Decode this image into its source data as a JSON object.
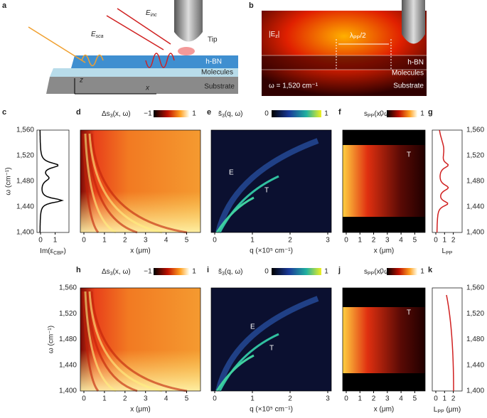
{
  "figure": {
    "a": {
      "label": "a",
      "e_inc": {
        "main": "E",
        "sub": "inc"
      },
      "e_sca": {
        "main": "E",
        "sub": "sca"
      },
      "tip": "Tip",
      "hbn": "h-BN",
      "molecules": "Molecules",
      "substrate": "Substrate",
      "z": "z",
      "x": "x"
    },
    "b": {
      "label": "b",
      "ez": {
        "main": "|E",
        "sub": "z",
        "tail": "|"
      },
      "lambda": {
        "main": "λ",
        "sub": "PP",
        "tail": "/2"
      },
      "hbn": "h-BN",
      "molecules": "Molecules",
      "substrate": "Substrate",
      "omega": "ω = 1,520 cm⁻¹"
    },
    "y_axis": {
      "label": "ω (cm⁻¹)",
      "ticks": [
        "1,560",
        "1,520",
        "1,480",
        "1,440",
        "1,400"
      ]
    },
    "c": {
      "label": "c",
      "xlabel": {
        "main": "Im(ε",
        "sub": "CBP",
        "tail": ")"
      },
      "xticks": [
        "0",
        "1"
      ]
    },
    "d": {
      "label": "d",
      "cbar_title": {
        "main": "Δs",
        "sub": "3",
        "tail": "(x, ω)"
      },
      "cbar_min": "−1",
      "cbar_max": "1",
      "xlabel": "x (μm)",
      "xticks": [
        "0",
        "1",
        "2",
        "3",
        "4",
        "5"
      ]
    },
    "e": {
      "label": "e",
      "cbar_title": {
        "main": "s̃",
        "sub": "3",
        "tail": "(q, ω)"
      },
      "cbar_min": "0",
      "cbar_max": "1",
      "xlabel": "q (×10⁵ cm⁻¹)",
      "xticks": [
        "0",
        "1",
        "2",
        "3"
      ],
      "mode_e": "E",
      "mode_t": "T"
    },
    "f": {
      "label": "f",
      "cbar_title": {
        "main": "s",
        "sub": "PP",
        "tail": "(x, ω)"
      },
      "cbar_min": "0",
      "cbar_max": "1",
      "xlabel": "x (μm)",
      "xticks": [
        "0",
        "1",
        "2",
        "3",
        "4",
        "5"
      ],
      "mode_t": "T"
    },
    "g": {
      "label": "g",
      "xlabel": {
        "main": "L",
        "sub": "PP"
      },
      "xticks": [
        "0",
        "1",
        "2"
      ]
    },
    "h": {
      "label": "h",
      "cbar_title": {
        "main": "Δs",
        "sub": "3",
        "tail": "(x, ω)"
      },
      "cbar_min": "−1",
      "cbar_max": "1",
      "xlabel": "x (μm)",
      "xticks": [
        "0",
        "1",
        "2",
        "3",
        "4",
        "5"
      ]
    },
    "i": {
      "label": "i",
      "cbar_title": {
        "main": "s̃",
        "sub": "3",
        "tail": "(q, ω)"
      },
      "cbar_min": "0",
      "cbar_max": "1",
      "xlabel": "q (×10⁵ cm⁻¹)",
      "xticks": [
        "0",
        "1",
        "2",
        "3"
      ],
      "mode_e": "E",
      "mode_t": "T"
    },
    "j": {
      "label": "j",
      "cbar_title": {
        "main": "s",
        "sub": "PP",
        "tail": "(x, ω)"
      },
      "cbar_min": "0",
      "cbar_max": "1",
      "xlabel": "x (μm)",
      "xticks": [
        "0",
        "1",
        "2",
        "3",
        "4",
        "5"
      ],
      "mode_t": "T"
    },
    "k": {
      "label": "k",
      "xlabel": {
        "main": "L",
        "sub": "PP",
        "tail": " (μm)"
      },
      "xticks": [
        "0",
        "1",
        "2"
      ]
    }
  }
}
